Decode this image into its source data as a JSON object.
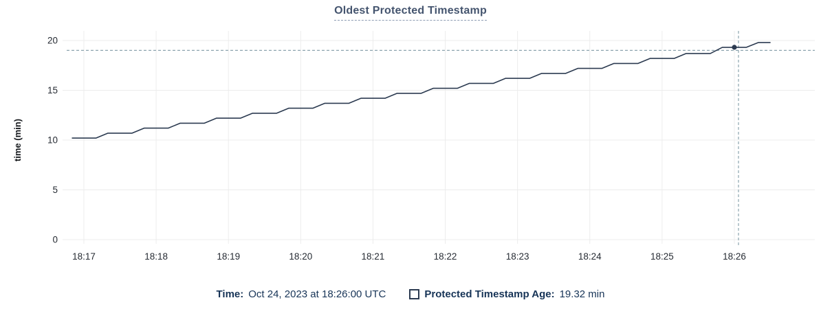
{
  "title": "Oldest Protected Timestamp",
  "y_axis": {
    "label": "time (min)",
    "ticks": [
      0,
      5,
      10,
      15,
      20
    ],
    "max": 21
  },
  "x_axis": {
    "tick_labels": [
      "18:17",
      "18:18",
      "18:19",
      "18:20",
      "18:21",
      "18:22",
      "18:23",
      "18:24",
      "18:25",
      "18:26"
    ]
  },
  "tooltip": {
    "time_label": "Time:",
    "time_value": "Oct 24, 2023 at 18:26:00 UTC",
    "series_label": "Protected Timestamp Age:",
    "series_value": "19.32 min"
  },
  "chart_data": {
    "type": "line",
    "title": "Oldest Protected Timestamp",
    "xlabel": "",
    "ylabel": "time (min)",
    "ylim": [
      0,
      21
    ],
    "grid": true,
    "legend_position": "bottom",
    "series_name": "Protected Timestamp Age",
    "x_start": "18:16:50",
    "x_end": "18:26:30",
    "x_interval_sec": 10,
    "x_tick_labels": [
      "18:17",
      "18:18",
      "18:19",
      "18:20",
      "18:21",
      "18:22",
      "18:23",
      "18:24",
      "18:25",
      "18:26"
    ],
    "values": [
      10.2,
      10.2,
      10.2,
      10.7,
      10.7,
      10.7,
      11.2,
      11.2,
      11.2,
      11.7,
      11.7,
      11.7,
      12.2,
      12.2,
      12.2,
      12.7,
      12.7,
      12.7,
      13.2,
      13.2,
      13.2,
      13.7,
      13.7,
      13.7,
      14.2,
      14.2,
      14.2,
      14.7,
      14.7,
      14.7,
      15.2,
      15.2,
      15.2,
      15.7,
      15.7,
      15.7,
      16.2,
      16.2,
      16.2,
      16.7,
      16.7,
      16.7,
      17.2,
      17.2,
      17.2,
      17.7,
      17.7,
      17.7,
      18.2,
      18.2,
      18.2,
      18.7,
      18.7,
      18.7,
      19.32,
      19.32,
      19.32,
      19.8,
      19.8
    ],
    "hover_point": {
      "time": "18:26:00",
      "value": 19.32,
      "value_label": "19.32 min",
      "time_label": "Oct 24, 2023 at 18:26:00 UTC"
    }
  },
  "colors": {
    "line": "#2b3a50",
    "title": "#44546e",
    "title_underline": "#8d9cb2",
    "legend_text": "#173457",
    "grid": "#ececec",
    "crosshair": "#8ba3ae",
    "tick_text": "#262b33"
  }
}
